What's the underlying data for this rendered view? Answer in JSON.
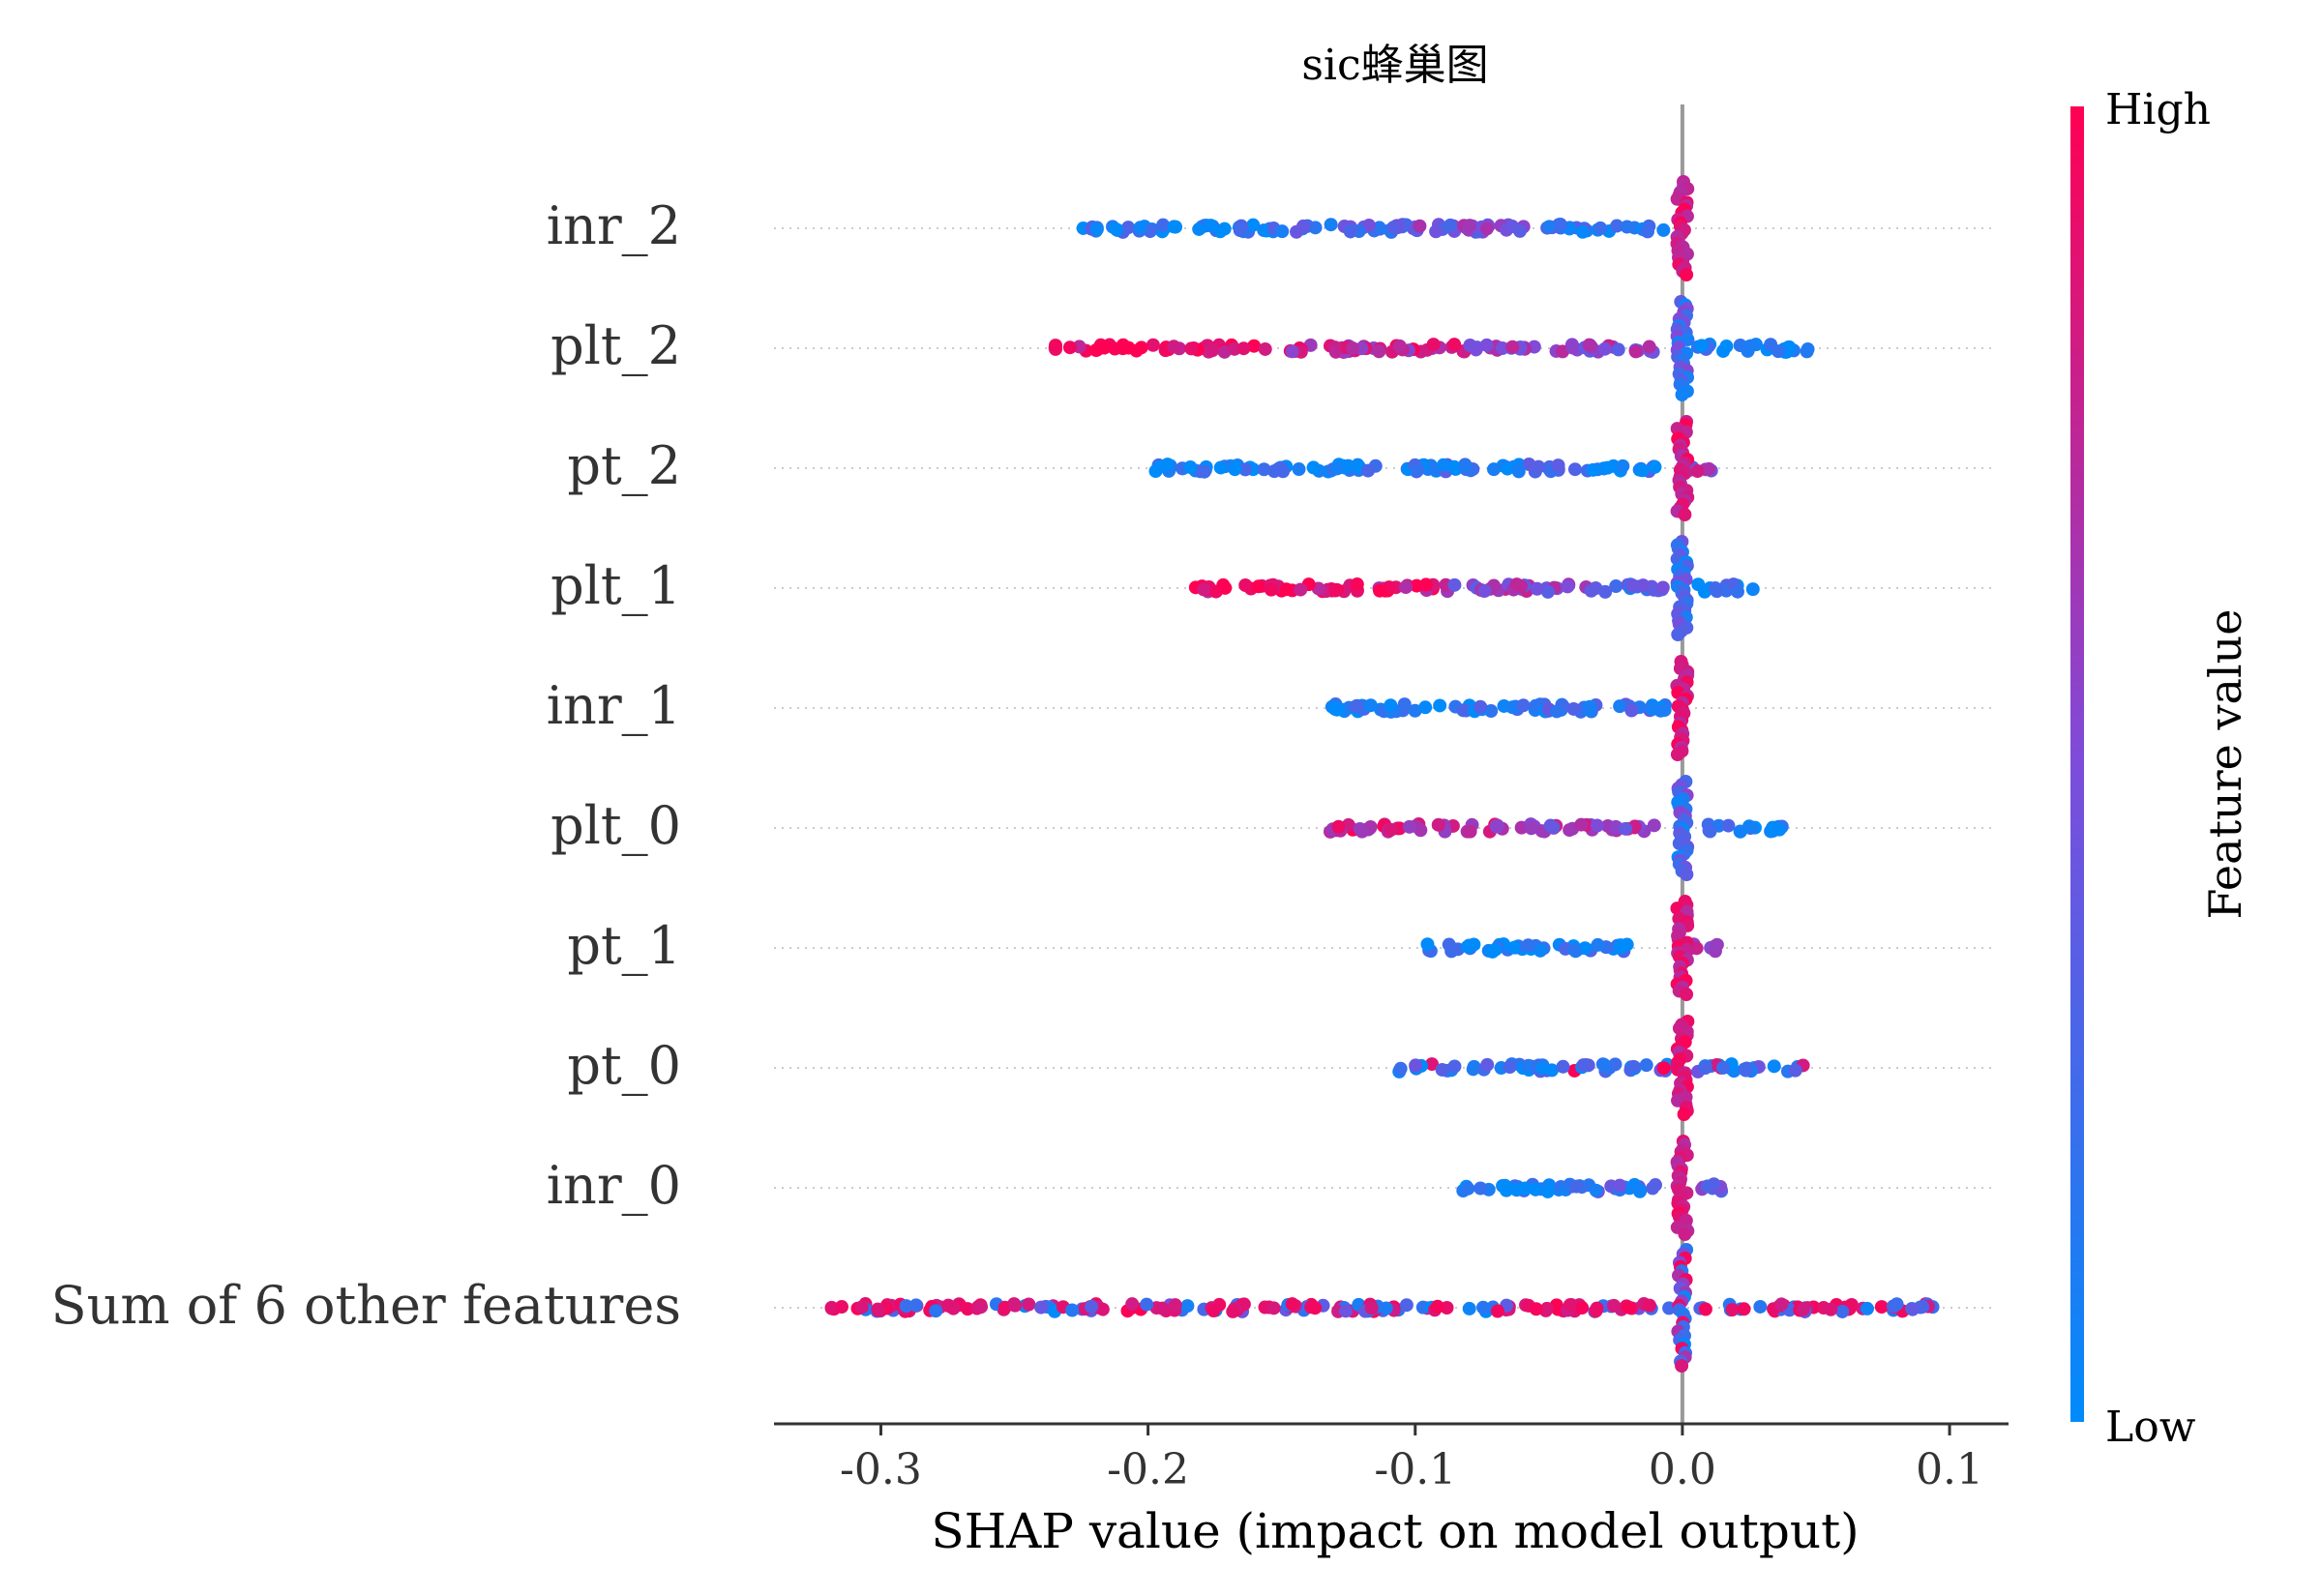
{
  "chart_data": {
    "type": "scatter",
    "subtype": "beeswarm",
    "title": "sic蜂巢图",
    "xlabel": "SHAP value (impact on model output)",
    "ylabel": "",
    "xlim": [
      -0.34,
      0.117
    ],
    "xticks": [
      -0.3,
      -0.2,
      -0.1,
      0.0,
      0.1
    ],
    "xtick_labels": [
      "-0.3",
      "-0.2",
      "-0.1",
      "0.0",
      "0.1"
    ],
    "features": [
      "inr_2",
      "plt_2",
      "pt_2",
      "plt_1",
      "inr_1",
      "plt_0",
      "pt_1",
      "pt_0",
      "inr_0",
      "Sum of 6 other features"
    ],
    "colorbar": {
      "label": "Feature value",
      "high_label": "High",
      "low_label": "Low",
      "low_color": "#008bfb",
      "high_color": "#ff0052"
    },
    "series": [
      {
        "feature": "inr_2",
        "min": -0.228,
        "max": 0.0,
        "center": 0.0,
        "low_side": "negative",
        "high_side": "center",
        "clusters": [
          [
            -0.228,
            -0.15,
            0.1
          ],
          [
            -0.15,
            -0.1,
            0.3
          ],
          [
            -0.1,
            -0.05,
            0.5
          ],
          [
            -0.05,
            -0.005,
            0.2
          ]
        ]
      },
      {
        "feature": "plt_2",
        "min": -0.235,
        "max": 0.047,
        "center": 0.0,
        "low_side": "positive",
        "high_side": "negative",
        "clusters": [
          [
            -0.235,
            -0.16,
            0.95
          ],
          [
            -0.16,
            -0.08,
            0.75
          ],
          [
            -0.08,
            -0.01,
            0.55
          ],
          [
            0.005,
            0.047,
            0.08
          ]
        ]
      },
      {
        "feature": "pt_2",
        "min": -0.198,
        "max": 0.012,
        "center": 0.0,
        "low_side": "negative",
        "high_side": "center",
        "clusters": [
          [
            -0.198,
            -0.09,
            0.1
          ],
          [
            -0.09,
            -0.01,
            0.15
          ],
          [
            0.0,
            0.012,
            0.6
          ]
        ]
      },
      {
        "feature": "plt_1",
        "min": -0.183,
        "max": 0.028,
        "center": 0.0,
        "low_side": "positive",
        "high_side": "negative",
        "clusters": [
          [
            -0.183,
            -0.09,
            0.9
          ],
          [
            -0.09,
            -0.03,
            0.55
          ],
          [
            -0.03,
            -0.005,
            0.35
          ],
          [
            0.005,
            0.028,
            0.1
          ]
        ]
      },
      {
        "feature": "inr_1",
        "min": -0.133,
        "max": 0.005,
        "center": 0.0,
        "low_side": "negative",
        "high_side": "center",
        "clusters": [
          [
            -0.133,
            -0.05,
            0.12
          ],
          [
            -0.05,
            -0.005,
            0.2
          ]
        ]
      },
      {
        "feature": "plt_0",
        "min": -0.132,
        "max": 0.04,
        "center": 0.0,
        "low_side": "positive",
        "high_side": "negative",
        "clusters": [
          [
            -0.132,
            -0.07,
            0.8
          ],
          [
            -0.07,
            -0.01,
            0.6
          ],
          [
            0.005,
            0.04,
            0.1
          ]
        ]
      },
      {
        "feature": "pt_1",
        "min": -0.097,
        "max": 0.014,
        "center": 0.0,
        "low_side": "negative",
        "high_side": "center",
        "clusters": [
          [
            -0.097,
            -0.02,
            0.08
          ],
          [
            0.0,
            0.014,
            0.7
          ]
        ]
      },
      {
        "feature": "pt_0",
        "min": -0.108,
        "max": 0.046,
        "center": 0.0,
        "low_side": "mixed",
        "high_side": "center",
        "clusters": [
          [
            -0.108,
            -0.05,
            0.08
          ],
          [
            -0.05,
            -0.005,
            0.15
          ],
          [
            0.005,
            0.046,
            0.15
          ]
        ]
      },
      {
        "feature": "inr_0",
        "min": -0.085,
        "max": 0.019,
        "center": 0.0,
        "low_side": "negative",
        "high_side": "center",
        "clusters": [
          [
            -0.085,
            -0.045,
            0.08
          ],
          [
            -0.045,
            -0.005,
            0.25
          ],
          [
            0.005,
            0.019,
            0.4
          ]
        ]
      },
      {
        "feature": "Sum of 6 other features",
        "min": -0.32,
        "max": 0.095,
        "center": 0.0,
        "low_side": "mixed",
        "high_side": "mixed",
        "clusters": [
          [
            -0.32,
            -0.17,
            0.7
          ],
          [
            -0.17,
            -0.07,
            0.65
          ],
          [
            -0.07,
            -0.005,
            0.75
          ],
          [
            0.005,
            0.095,
            0.6
          ]
        ]
      }
    ],
    "grid": false,
    "zero_line": true
  }
}
